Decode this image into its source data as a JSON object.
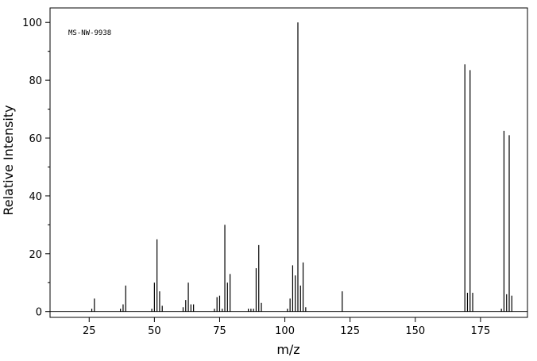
{
  "chart_data": {
    "type": "stem",
    "annotation": "MS-NW-9938",
    "xlabel": "m/z",
    "ylabel": "Relative Intensity",
    "x": [
      26,
      27,
      37,
      38,
      39,
      49,
      50,
      51,
      52,
      53,
      61,
      62,
      63,
      64,
      65,
      73,
      74,
      75,
      76,
      77,
      78,
      79,
      86,
      87,
      88,
      89,
      90,
      91,
      101,
      102,
      103,
      104,
      105,
      106,
      107,
      108,
      122,
      169,
      170,
      171,
      172,
      183,
      184,
      185,
      186,
      187
    ],
    "values": [
      1,
      4.5,
      1,
      2.5,
      9,
      1,
      10,
      25,
      7,
      2,
      1.5,
      4,
      10,
      2.5,
      2.5,
      1,
      5,
      5.5,
      1,
      30,
      10,
      13,
      1,
      1,
      1,
      15,
      23,
      3,
      1,
      4.5,
      16,
      12.5,
      100,
      9,
      17,
      1.5,
      7,
      85.5,
      6.5,
      83.5,
      6.5,
      1,
      62.5,
      6,
      61,
      5.5
    ],
    "color": "#000000",
    "xlim": [
      10,
      193
    ],
    "xticks": [
      25,
      50,
      75,
      100,
      125,
      150,
      175
    ],
    "ylim": [
      -2,
      105
    ],
    "yticks": [
      0,
      20,
      40,
      60,
      80,
      100
    ],
    "yticks_minor": [
      10,
      30,
      50,
      70,
      90
    ]
  }
}
